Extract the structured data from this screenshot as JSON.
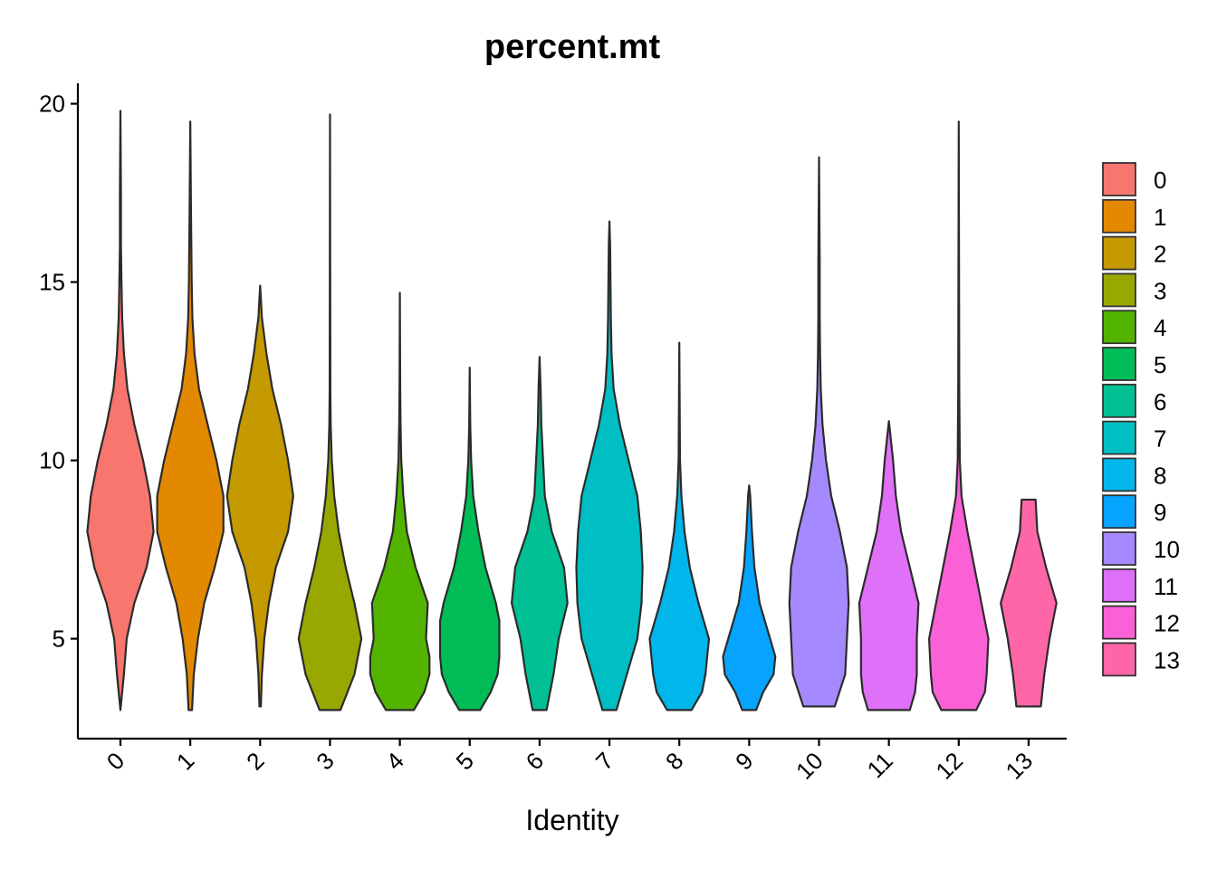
{
  "chart_data": {
    "type": "violin",
    "title": "percent.mt",
    "xlabel": "Identity",
    "ylabel": "",
    "ylim": [
      2.2,
      20.6
    ],
    "yticks": [
      5,
      10,
      15,
      20
    ],
    "categories": [
      "0",
      "1",
      "2",
      "3",
      "4",
      "5",
      "6",
      "7",
      "8",
      "9",
      "10",
      "11",
      "12",
      "13"
    ],
    "colors": [
      "#F8766D",
      "#E38900",
      "#C49A00",
      "#99A800",
      "#53B400",
      "#00BC56",
      "#00C094",
      "#00BFC4",
      "#00B6EB",
      "#06A4FF",
      "#A58AFF",
      "#DF70F8",
      "#FB61D7",
      "#FF66A8"
    ],
    "legend": {
      "position": "right",
      "labels": [
        "0",
        "1",
        "2",
        "3",
        "4",
        "5",
        "6",
        "7",
        "8",
        "9",
        "10",
        "11",
        "12",
        "13"
      ]
    },
    "grid": false,
    "violins": [
      {
        "category": "0",
        "min": 3.0,
        "max": 19.8,
        "profile": [
          [
            3.0,
            0.0
          ],
          [
            3.5,
            0.05
          ],
          [
            4.0,
            0.1
          ],
          [
            5.0,
            0.18
          ],
          [
            6.0,
            0.4
          ],
          [
            7.0,
            0.75
          ],
          [
            8.0,
            0.95
          ],
          [
            9.0,
            0.85
          ],
          [
            10.0,
            0.65
          ],
          [
            11.0,
            0.4
          ],
          [
            12.0,
            0.2
          ],
          [
            13.0,
            0.1
          ],
          [
            14.0,
            0.05
          ],
          [
            15.0,
            0.03
          ],
          [
            16.0,
            0.015
          ],
          [
            17.5,
            0.015
          ],
          [
            19.8,
            0.0
          ]
        ]
      },
      {
        "category": "1",
        "min": 3.0,
        "max": 19.5,
        "profile": [
          [
            3.0,
            0.05
          ],
          [
            4.0,
            0.1
          ],
          [
            5.0,
            0.22
          ],
          [
            6.0,
            0.4
          ],
          [
            7.0,
            0.7
          ],
          [
            8.0,
            0.95
          ],
          [
            9.0,
            0.95
          ],
          [
            10.0,
            0.75
          ],
          [
            11.0,
            0.5
          ],
          [
            12.0,
            0.25
          ],
          [
            13.0,
            0.12
          ],
          [
            14.0,
            0.06
          ],
          [
            15.0,
            0.04
          ],
          [
            17.0,
            0.02
          ],
          [
            19.5,
            0.0
          ]
        ]
      },
      {
        "category": "2",
        "min": 3.1,
        "max": 14.9,
        "profile": [
          [
            3.1,
            0.02
          ],
          [
            4.0,
            0.05
          ],
          [
            5.0,
            0.12
          ],
          [
            6.0,
            0.25
          ],
          [
            7.0,
            0.45
          ],
          [
            8.0,
            0.8
          ],
          [
            9.0,
            0.95
          ],
          [
            10.0,
            0.8
          ],
          [
            11.0,
            0.6
          ],
          [
            12.0,
            0.35
          ],
          [
            13.0,
            0.18
          ],
          [
            14.0,
            0.05
          ],
          [
            14.9,
            0.0
          ]
        ]
      },
      {
        "category": "3",
        "min": 3.0,
        "max": 19.7,
        "profile": [
          [
            3.0,
            0.3
          ],
          [
            3.5,
            0.5
          ],
          [
            4.0,
            0.7
          ],
          [
            5.0,
            0.9
          ],
          [
            6.0,
            0.7
          ],
          [
            7.0,
            0.45
          ],
          [
            8.0,
            0.25
          ],
          [
            9.0,
            0.12
          ],
          [
            10.0,
            0.05
          ],
          [
            11.0,
            0.02
          ],
          [
            12.0,
            0.01
          ],
          [
            19.7,
            0.0
          ]
        ]
      },
      {
        "category": "4",
        "min": 3.0,
        "max": 14.7,
        "profile": [
          [
            3.0,
            0.4
          ],
          [
            3.5,
            0.7
          ],
          [
            4.0,
            0.85
          ],
          [
            4.5,
            0.85
          ],
          [
            5.0,
            0.75
          ],
          [
            6.0,
            0.8
          ],
          [
            7.0,
            0.45
          ],
          [
            8.0,
            0.2
          ],
          [
            9.0,
            0.1
          ],
          [
            10.0,
            0.04
          ],
          [
            11.0,
            0.02
          ],
          [
            12.0,
            0.01
          ],
          [
            14.7,
            0.0
          ]
        ]
      },
      {
        "category": "5",
        "min": 3.0,
        "max": 12.6,
        "profile": [
          [
            3.0,
            0.3
          ],
          [
            3.5,
            0.6
          ],
          [
            4.0,
            0.8
          ],
          [
            4.5,
            0.85
          ],
          [
            5.0,
            0.85
          ],
          [
            5.5,
            0.85
          ],
          [
            6.0,
            0.75
          ],
          [
            7.0,
            0.45
          ],
          [
            8.0,
            0.25
          ],
          [
            9.0,
            0.1
          ],
          [
            10.0,
            0.04
          ],
          [
            11.0,
            0.015
          ],
          [
            12.6,
            0.0
          ]
        ]
      },
      {
        "category": "6",
        "min": 3.0,
        "max": 12.9,
        "profile": [
          [
            3.0,
            0.2
          ],
          [
            4.0,
            0.4
          ],
          [
            5.0,
            0.55
          ],
          [
            6.0,
            0.8
          ],
          [
            7.0,
            0.7
          ],
          [
            8.0,
            0.35
          ],
          [
            9.0,
            0.15
          ],
          [
            10.0,
            0.1
          ],
          [
            11.0,
            0.05
          ],
          [
            12.0,
            0.03
          ],
          [
            12.9,
            0.0
          ]
        ]
      },
      {
        "category": "7",
        "min": 3.0,
        "max": 16.7,
        "profile": [
          [
            3.0,
            0.2
          ],
          [
            4.0,
            0.5
          ],
          [
            5.0,
            0.8
          ],
          [
            6.0,
            0.92
          ],
          [
            7.0,
            0.95
          ],
          [
            8.0,
            0.9
          ],
          [
            9.0,
            0.8
          ],
          [
            10.0,
            0.55
          ],
          [
            11.0,
            0.3
          ],
          [
            12.0,
            0.12
          ],
          [
            13.0,
            0.06
          ],
          [
            14.0,
            0.04
          ],
          [
            15.0,
            0.03
          ],
          [
            16.0,
            0.02
          ],
          [
            16.7,
            0.0
          ]
        ]
      },
      {
        "category": "8",
        "min": 3.0,
        "max": 13.3,
        "profile": [
          [
            3.0,
            0.35
          ],
          [
            3.5,
            0.65
          ],
          [
            4.0,
            0.75
          ],
          [
            5.0,
            0.85
          ],
          [
            6.0,
            0.55
          ],
          [
            7.0,
            0.3
          ],
          [
            8.0,
            0.15
          ],
          [
            9.0,
            0.06
          ],
          [
            10.0,
            0.02
          ],
          [
            13.3,
            0.0
          ]
        ]
      },
      {
        "category": "9",
        "min": 3.0,
        "max": 9.3,
        "profile": [
          [
            3.0,
            0.2
          ],
          [
            3.5,
            0.4
          ],
          [
            4.0,
            0.7
          ],
          [
            4.5,
            0.75
          ],
          [
            5.0,
            0.6
          ],
          [
            6.0,
            0.3
          ],
          [
            7.0,
            0.15
          ],
          [
            8.0,
            0.08
          ],
          [
            9.0,
            0.03
          ],
          [
            9.3,
            0.0
          ]
        ]
      },
      {
        "category": "10",
        "min": 3.1,
        "max": 18.5,
        "profile": [
          [
            3.1,
            0.45
          ],
          [
            4.0,
            0.75
          ],
          [
            5.0,
            0.8
          ],
          [
            6.0,
            0.85
          ],
          [
            7.0,
            0.8
          ],
          [
            8.0,
            0.6
          ],
          [
            9.0,
            0.35
          ],
          [
            10.0,
            0.2
          ],
          [
            11.0,
            0.1
          ],
          [
            12.0,
            0.05
          ],
          [
            13.0,
            0.03
          ],
          [
            14.0,
            0.02
          ],
          [
            15.5,
            0.02
          ],
          [
            18.5,
            0.0
          ]
        ]
      },
      {
        "category": "11",
        "min": 3.0,
        "max": 11.1,
        "profile": [
          [
            3.0,
            0.6
          ],
          [
            3.5,
            0.75
          ],
          [
            4.0,
            0.8
          ],
          [
            5.0,
            0.8
          ],
          [
            6.0,
            0.85
          ],
          [
            7.0,
            0.6
          ],
          [
            8.0,
            0.35
          ],
          [
            9.0,
            0.2
          ],
          [
            10.0,
            0.12
          ],
          [
            11.1,
            0.0
          ]
        ]
      },
      {
        "category": "12",
        "min": 3.0,
        "max": 19.5,
        "profile": [
          [
            3.0,
            0.5
          ],
          [
            3.5,
            0.75
          ],
          [
            4.0,
            0.8
          ],
          [
            5.0,
            0.85
          ],
          [
            6.0,
            0.65
          ],
          [
            7.0,
            0.45
          ],
          [
            8.0,
            0.25
          ],
          [
            9.0,
            0.08
          ],
          [
            10.0,
            0.03
          ],
          [
            12.0,
            0.015
          ],
          [
            19.5,
            0.0
          ]
        ]
      },
      {
        "category": "13",
        "min": 3.1,
        "max": 8.9,
        "profile": [
          [
            3.1,
            0.35
          ],
          [
            4.0,
            0.45
          ],
          [
            5.0,
            0.6
          ],
          [
            6.0,
            0.8
          ],
          [
            7.0,
            0.5
          ],
          [
            8.0,
            0.25
          ],
          [
            8.9,
            0.2
          ]
        ]
      }
    ]
  }
}
